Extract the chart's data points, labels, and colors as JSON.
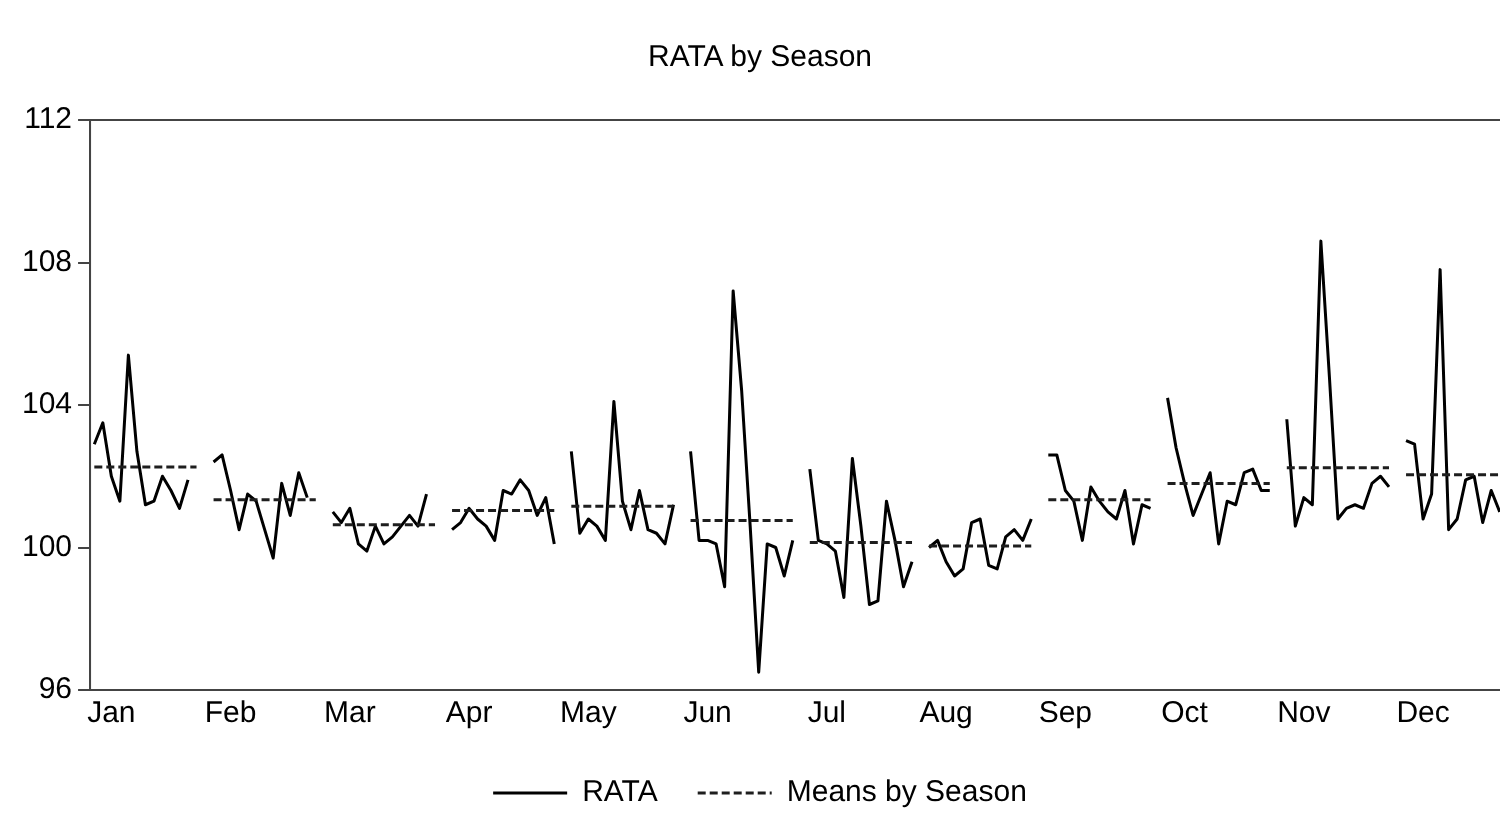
{
  "chart_data": {
    "type": "line",
    "title": "RATA by Season",
    "categories": [
      null,
      null,
      "Jan",
      null,
      null,
      null,
      null,
      null,
      null,
      null,
      null,
      null,
      null,
      null,
      null,
      null,
      "Feb",
      null,
      null,
      null,
      null,
      null,
      null,
      null,
      null,
      null,
      null,
      null,
      null,
      null,
      "Mar",
      null,
      null,
      null,
      null,
      null,
      null,
      null,
      null,
      null,
      null,
      null,
      null,
      null,
      "Apr",
      null,
      null,
      null,
      null,
      null,
      null,
      null,
      null,
      null,
      null,
      null,
      null,
      null,
      "May",
      null,
      null,
      null,
      null,
      null,
      null,
      null,
      null,
      null,
      null,
      null,
      null,
      null,
      "Jun",
      null,
      null,
      null,
      null,
      null,
      null,
      null,
      null,
      null,
      null,
      null,
      null,
      null,
      "Jul",
      null,
      null,
      null,
      null,
      null,
      null,
      null,
      null,
      null,
      null,
      null,
      null,
      null,
      "Aug",
      null,
      null,
      null,
      null,
      null,
      null,
      null,
      null,
      null,
      null,
      null,
      null,
      null,
      "Sep",
      null,
      null,
      null,
      null,
      null,
      null,
      null,
      null,
      null,
      null,
      null,
      null,
      null,
      "Oct",
      null,
      null,
      null,
      null,
      null,
      null,
      null,
      null,
      null,
      null,
      null,
      null,
      null,
      "Nov",
      null,
      null,
      null,
      null,
      null,
      null,
      null,
      null,
      null,
      null,
      null,
      null,
      null,
      "Dec",
      null,
      null,
      null,
      null,
      null,
      null,
      null,
      null,
      null
    ],
    "ylim": [
      96,
      112
    ],
    "yticks": [
      96,
      100,
      104,
      108,
      112
    ],
    "grid": false,
    "legend": "bottom",
    "series": [
      {
        "name": "RATA",
        "color": "#000000",
        "line_style": "solid",
        "values": [
          102.9,
          103.5,
          102,
          101.3,
          105.4,
          102.7,
          101.2,
          101.3,
          102,
          101.6,
          101.1,
          101.9,
          null,
          null,
          102.4,
          102.6,
          101.6,
          100.5,
          101.5,
          101.3,
          100.5,
          99.7,
          101.8,
          100.9,
          102.1,
          101.4,
          null,
          null,
          101,
          100.7,
          101.1,
          100.1,
          99.9,
          100.6,
          100.1,
          100.3,
          100.6,
          100.9,
          100.6,
          101.5,
          null,
          null,
          100.5,
          100.7,
          101.1,
          100.8,
          100.6,
          100.2,
          101.6,
          101.5,
          101.9,
          101.6,
          100.9,
          101.4,
          100.1,
          null,
          102.7,
          100.4,
          100.8,
          100.6,
          100.2,
          104.1,
          101.3,
          100.5,
          101.6,
          100.5,
          100.4,
          100.1,
          101.2,
          null,
          102.7,
          100.2,
          100.2,
          100.1,
          98.9,
          107.2,
          104.4,
          100.6,
          96.5,
          100.1,
          100,
          99.2,
          100.2,
          null,
          102.2,
          100.2,
          100.1,
          99.9,
          98.6,
          102.5,
          100.6,
          98.4,
          98.5,
          101.3,
          100.2,
          98.9,
          99.6,
          null,
          100,
          100.2,
          99.6,
          99.2,
          99.4,
          100.7,
          100.8,
          99.5,
          99.4,
          100.3,
          100.5,
          100.2,
          100.8,
          null,
          102.6,
          102.6,
          101.6,
          101.3,
          100.2,
          101.7,
          101.3,
          101,
          100.8,
          101.6,
          100.1,
          101.2,
          101.1,
          null,
          104.2,
          102.8,
          101.8,
          100.9,
          101.5,
          102.1,
          100.1,
          101.3,
          101.2,
          102.1,
          102.2,
          101.6,
          101.6,
          null,
          103.6,
          100.6,
          101.4,
          101.2,
          108.6,
          104.8,
          100.8,
          101.1,
          101.2,
          101.1,
          101.8,
          102,
          101.7,
          null,
          103,
          102.9,
          100.8,
          101.5,
          107.8,
          100.5,
          100.8,
          101.9,
          102,
          100.7,
          101.6,
          101
        ]
      },
      {
        "name": "Means by Season",
        "color": "#1e1e1e",
        "line_style": "dashed",
        "values": [
          102.26,
          102.26,
          102.26,
          102.26,
          102.26,
          102.26,
          102.26,
          102.26,
          102.26,
          102.26,
          102.26,
          102.26,
          102.26,
          null,
          101.34,
          101.34,
          101.34,
          101.34,
          101.34,
          101.34,
          101.34,
          101.34,
          101.34,
          101.34,
          101.34,
          101.34,
          101.34,
          null,
          100.64,
          100.64,
          100.64,
          100.64,
          100.64,
          100.64,
          100.64,
          100.64,
          100.64,
          100.64,
          100.64,
          100.64,
          100.64,
          null,
          101.04,
          101.04,
          101.04,
          101.04,
          101.04,
          101.04,
          101.04,
          101.04,
          101.04,
          101.04,
          101.04,
          101.04,
          101.04,
          null,
          101.16,
          101.16,
          101.16,
          101.16,
          101.16,
          101.16,
          101.16,
          101.16,
          101.16,
          101.16,
          101.16,
          101.16,
          101.16,
          null,
          100.76,
          100.76,
          100.76,
          100.76,
          100.76,
          100.76,
          100.76,
          100.76,
          100.76,
          100.76,
          100.76,
          100.76,
          100.76,
          null,
          100.14,
          100.14,
          100.14,
          100.14,
          100.14,
          100.14,
          100.14,
          100.14,
          100.14,
          100.14,
          100.14,
          100.14,
          100.14,
          null,
          100.04,
          100.04,
          100.04,
          100.04,
          100.04,
          100.04,
          100.04,
          100.04,
          100.04,
          100.04,
          100.04,
          100.04,
          100.04,
          null,
          101.34,
          101.34,
          101.34,
          101.34,
          101.34,
          101.34,
          101.34,
          101.34,
          101.34,
          101.34,
          101.34,
          101.34,
          101.34,
          null,
          101.8,
          101.8,
          101.8,
          101.8,
          101.8,
          101.8,
          101.8,
          101.8,
          101.8,
          101.8,
          101.8,
          101.8,
          101.8,
          null,
          102.24,
          102.24,
          102.24,
          102.24,
          102.24,
          102.24,
          102.24,
          102.24,
          102.24,
          102.24,
          102.24,
          102.24,
          102.24,
          null,
          102.04,
          102.04,
          102.04,
          102.04,
          102.04,
          102.04,
          102.04,
          102.04,
          102.04,
          102.04,
          102.04,
          102.04
        ]
      }
    ]
  }
}
